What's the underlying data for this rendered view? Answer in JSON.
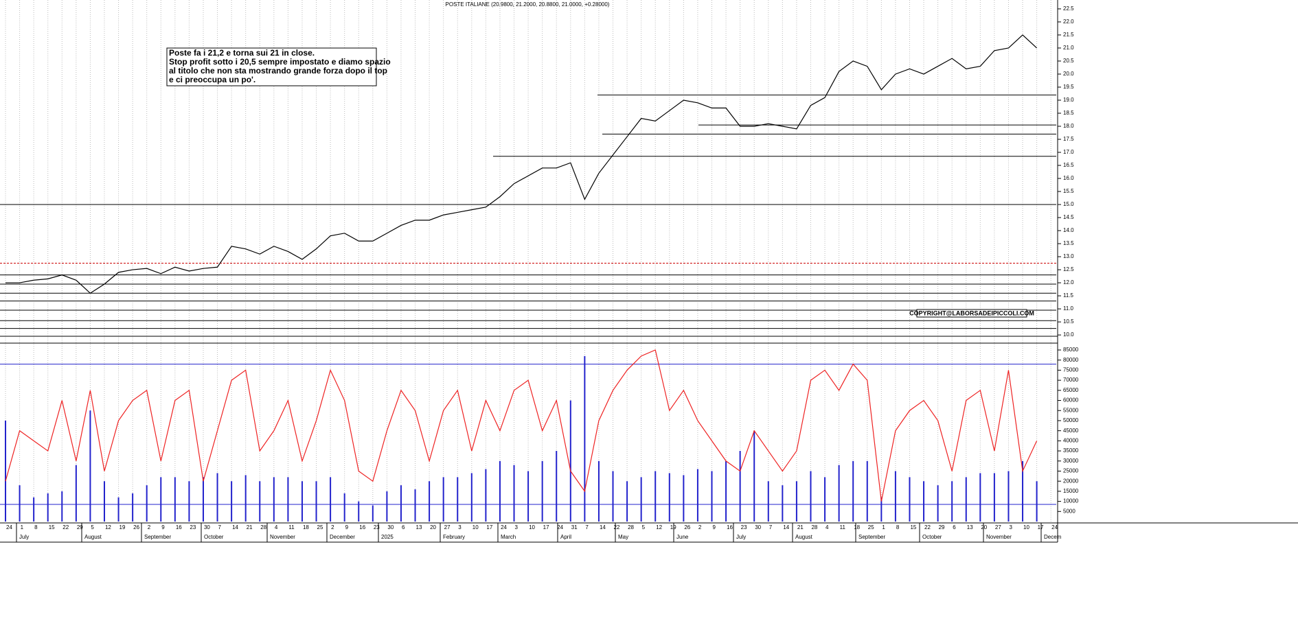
{
  "chart_data": [
    {
      "type": "line",
      "title": "POSTE ITALIANE (20.9800, 21.2000, 20.8800, 21.0000, +0.28000)",
      "annotation": [
        "Poste fa i 21,2 e torna sui 21 in close.",
        "Stop profit sotto i 20,5 sempre impostato e diamo spazio",
        "al titolo che non sta mostrando grande forza dopo il top",
        "e ci preoccupa un po'."
      ],
      "copyright": "COPYRIGHT@LABORSADEIPICCOLI.COM",
      "months": [
        "July",
        "August",
        "September",
        "October",
        "November",
        "December",
        "2025",
        "February",
        "March",
        "April",
        "May",
        "June",
        "July",
        "August",
        "September",
        "October",
        "November",
        "Decem"
      ],
      "categories": [
        "24",
        "1",
        "8",
        "15",
        "22",
        "29",
        "5",
        "12",
        "19",
        "26",
        "2",
        "9",
        "16",
        "23",
        "30",
        "7",
        "14",
        "21",
        "28",
        "4",
        "11",
        "18",
        "25",
        "2",
        "9",
        "16",
        "23",
        "30",
        "6",
        "13",
        "20",
        "27",
        "3",
        "10",
        "17",
        "24",
        "3",
        "10",
        "17",
        "24",
        "31",
        "7",
        "14",
        "22",
        "28",
        "5",
        "12",
        "19",
        "26",
        "2",
        "9",
        "16",
        "23",
        "30",
        "7",
        "14",
        "21",
        "28",
        "4",
        "11",
        "18",
        "25",
        "1",
        "8",
        "15",
        "22",
        "29",
        "6",
        "13",
        "20",
        "27",
        "3",
        "10",
        "17",
        "24"
      ],
      "series": [
        {
          "color": "#000000",
          "values": [
            12.0,
            12.0,
            12.1,
            12.15,
            12.3,
            12.1,
            11.6,
            11.95,
            12.4,
            12.5,
            12.55,
            12.35,
            12.6,
            12.45,
            12.55,
            12.6,
            13.4,
            13.3,
            13.1,
            13.4,
            13.2,
            12.9,
            13.3,
            13.8,
            13.9,
            13.6,
            13.6,
            13.9,
            14.2,
            14.4,
            14.4,
            14.6,
            14.7,
            14.8,
            14.9,
            15.3,
            15.8,
            16.1,
            16.4,
            16.4,
            16.6,
            15.2,
            16.2,
            16.9,
            17.6,
            18.3,
            18.2,
            18.6,
            19.0,
            18.9,
            18.7,
            18.7,
            18.0,
            18.0,
            18.1,
            18.0,
            17.9,
            18.8,
            19.1,
            20.1,
            20.5,
            20.3,
            19.4,
            20.0,
            20.2,
            20.0,
            20.3,
            20.6,
            20.2,
            20.3,
            20.9,
            21.0,
            21.5,
            21.0,
            null
          ]
        }
      ],
      "hlines": [
        {
          "value": 19.2,
          "color": "#000000"
        },
        {
          "value": 18.05,
          "color": "#000000"
        },
        {
          "value": 17.7,
          "color": "#000000"
        },
        {
          "value": 16.85,
          "color": "#000000"
        },
        {
          "value": 15.0,
          "color": "#000000"
        },
        {
          "value": 12.75,
          "color": "#cc0000",
          "dash": true
        },
        {
          "value": 12.3,
          "color": "#000000"
        },
        {
          "value": 11.95,
          "color": "#000000"
        },
        {
          "value": 11.6,
          "color": "#000000"
        },
        {
          "value": 11.3,
          "color": "#000000"
        },
        {
          "value": 10.95,
          "color": "#000000"
        },
        {
          "value": 10.55,
          "color": "#000000"
        },
        {
          "value": 10.25,
          "color": "#000000"
        }
      ],
      "ylim": [
        9.95,
        22.84
      ],
      "yticks": [
        {
          "value": 10,
          "label": "10.0"
        },
        10.5,
        {
          "value": 11,
          "label": "11.0"
        },
        11.5,
        {
          "value": 12,
          "label": "12.0"
        },
        12.5,
        {
          "value": 13,
          "label": "13.0"
        },
        13.5,
        {
          "value": 14,
          "label": "14.0"
        },
        14.5,
        {
          "value": 15,
          "label": "15.0"
        },
        15.5,
        {
          "value": 16,
          "label": "16.0"
        },
        16.5,
        {
          "value": 17,
          "label": "17.0"
        },
        17.5,
        {
          "value": 18,
          "label": "18.0"
        },
        18.5,
        {
          "value": 19,
          "label": "19.0"
        },
        19.5,
        {
          "value": 20,
          "label": "20.0"
        },
        20.5,
        {
          "value": 21,
          "label": "21.0"
        },
        21.5,
        {
          "value": 22,
          "label": "22.0"
        },
        22.5
      ]
    },
    {
      "type": "bar",
      "series": [
        {
          "color": "#2222cc",
          "values": [
            50000,
            18000,
            12000,
            14000,
            15000,
            28000,
            55000,
            20000,
            12000,
            14000,
            18000,
            22000,
            22000,
            20000,
            22000,
            24000,
            20000,
            23000,
            20000,
            22000,
            22000,
            20000,
            20000,
            22000,
            14000,
            10000,
            8000,
            15000,
            18000,
            16000,
            20000,
            22000,
            22000,
            24000,
            26000,
            30000,
            28000,
            25000,
            30000,
            35000,
            60000,
            82000,
            30000,
            25000,
            20000,
            22000,
            25000,
            24000,
            23000,
            26000,
            25000,
            30000,
            35000,
            45000,
            20000,
            18000,
            20000,
            25000,
            22000,
            28000,
            30000,
            30000,
            12000,
            25000,
            22000,
            20000,
            18000,
            20000,
            22000,
            24000,
            24000,
            25000,
            30000,
            20000,
            null
          ]
        },
        {
          "type": "line",
          "color": "#ee2222",
          "values": [
            20000,
            45000,
            40000,
            35000,
            60000,
            30000,
            65000,
            25000,
            50000,
            60000,
            65000,
            30000,
            60000,
            65000,
            20000,
            45000,
            70000,
            75000,
            35000,
            45000,
            60000,
            30000,
            50000,
            75000,
            60000,
            25000,
            20000,
            45000,
            65000,
            55000,
            30000,
            55000,
            65000,
            35000,
            60000,
            45000,
            65000,
            70000,
            45000,
            60000,
            25000,
            15000,
            50000,
            65000,
            75000,
            82000,
            85000,
            55000,
            65000,
            50000,
            40000,
            30000,
            25000,
            45000,
            35000,
            25000,
            35000,
            70000,
            75000,
            65000,
            78000,
            70000,
            10000,
            45000,
            55000,
            60000,
            50000,
            25000,
            60000,
            65000,
            35000,
            75000,
            25000,
            40000,
            null
          ]
        }
      ],
      "hlines": [
        {
          "value": 78000,
          "color": "#2222cc"
        },
        {
          "value": 8500,
          "color": "#2222cc"
        }
      ],
      "ylim": [
        0,
        85000
      ],
      "yticks": [
        5000,
        10000,
        15000,
        20000,
        25000,
        30000,
        35000,
        40000,
        45000,
        50000,
        55000,
        60000,
        65000,
        70000,
        75000,
        80000,
        85000
      ]
    }
  ]
}
